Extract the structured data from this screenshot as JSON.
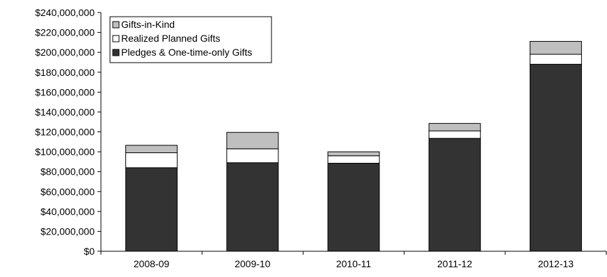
{
  "chart_data": {
    "type": "bar",
    "stacked": true,
    "title": "",
    "xlabel": "",
    "ylabel": "",
    "categories": [
      "2008-09",
      "2009-10",
      "2010-11",
      "2011-12",
      "2012-13"
    ],
    "series": [
      {
        "name": "Pledges & One-time-only Gifts",
        "color": "#333333",
        "values": [
          84000000,
          89000000,
          88500000,
          113500000,
          188000000
        ]
      },
      {
        "name": "Realized Planned Gifts",
        "color": "#ffffff",
        "values": [
          15000000,
          14000000,
          7500000,
          7500000,
          10000000
        ]
      },
      {
        "name": "Gifts-in-Kind",
        "color": "#bfbfbf",
        "values": [
          7500000,
          16500000,
          4000000,
          7500000,
          13000000
        ]
      }
    ],
    "ylim": [
      0,
      240000000
    ],
    "y_ticks": [
      "$0",
      "$20,000,000",
      "$40,000,000",
      "$60,000,000",
      "$80,000,000",
      "$100,000,000",
      "$120,000,000",
      "$140,000,000",
      "$160,000,000",
      "$180,000,000",
      "$200,000,000",
      "$220,000,000",
      "$240,000,000"
    ],
    "grid": false,
    "legend_position": "top-left",
    "legend_order": [
      "Gifts-in-Kind",
      "Realized Planned Gifts",
      "Pledges & One-time-only Gifts"
    ]
  }
}
